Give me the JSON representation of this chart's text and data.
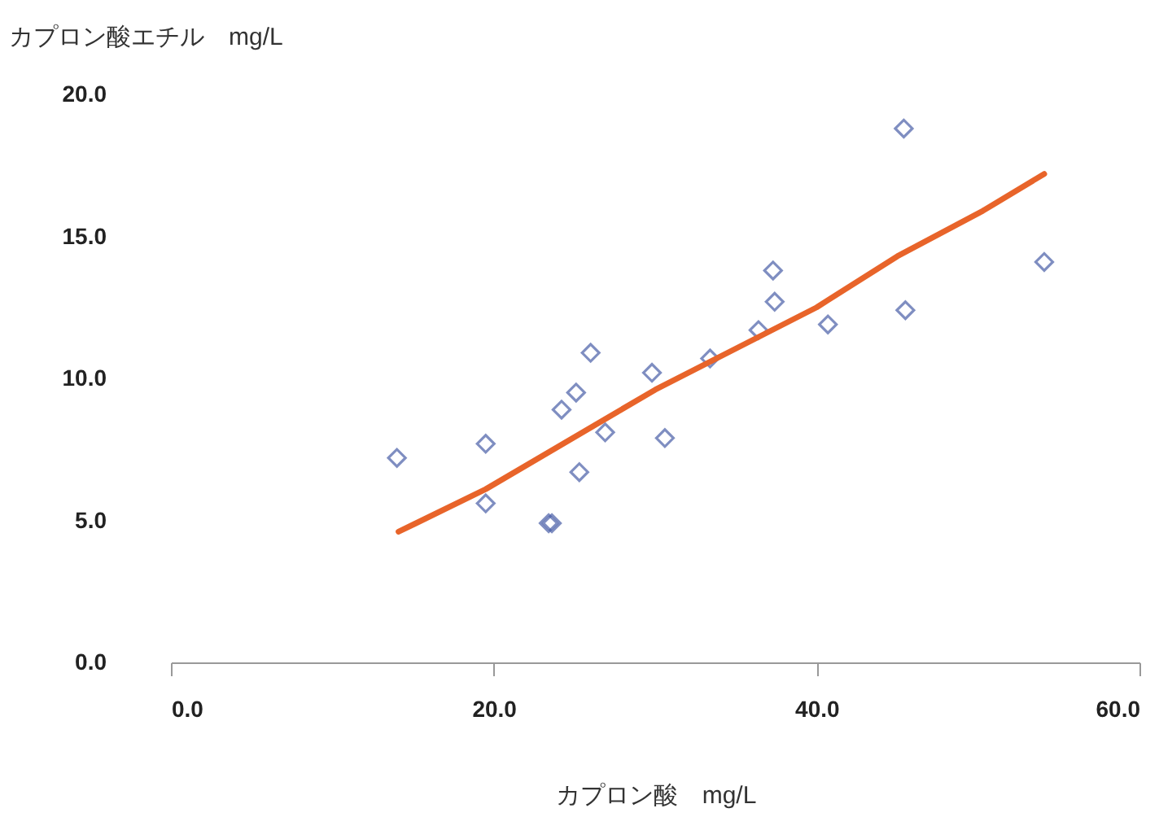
{
  "chart_data": {
    "type": "scatter",
    "xlabel": "カプロン酸　mg/L",
    "ylabel": "カプロン酸エチル　mg/L",
    "xlim": [
      0,
      60
    ],
    "ylim": [
      0,
      20
    ],
    "xticks": [
      {
        "value": 0,
        "label": "0.0"
      },
      {
        "value": 20,
        "label": "20.0"
      },
      {
        "value": 40,
        "label": "40.0"
      },
      {
        "value": 60,
        "label": "60.0"
      }
    ],
    "yticks": [
      {
        "value": 0,
        "label": "0.0"
      },
      {
        "value": 5,
        "label": "5.0"
      },
      {
        "value": 10,
        "label": "10.0"
      },
      {
        "value": 15,
        "label": "15.0"
      },
      {
        "value": 20,
        "label": "20.0"
      }
    ],
    "series": [
      {
        "marker": "diamond",
        "color": "#4a5fa8",
        "x": [
          14.0,
          19.5,
          19.5,
          23.4,
          23.6,
          24.2,
          25.1,
          25.3,
          26.0,
          26.9,
          29.8,
          30.6,
          33.4,
          36.4,
          37.3,
          37.4,
          40.7,
          45.4,
          45.5,
          54.1
        ],
        "values": [
          7.2,
          7.7,
          5.6,
          4.9,
          4.9,
          8.9,
          9.5,
          6.7,
          10.9,
          8.1,
          10.2,
          7.9,
          10.7,
          11.7,
          13.8,
          12.7,
          11.9,
          18.8,
          12.4,
          14.1
        ]
      },
      {
        "type": "line",
        "color": "#e8642a",
        "x": [
          14.1,
          19.5,
          30,
          40,
          45,
          50.3,
          54.1
        ],
        "values": [
          4.6,
          6.1,
          9.6,
          12.5,
          14.3,
          15.9,
          17.2
        ]
      }
    ]
  }
}
